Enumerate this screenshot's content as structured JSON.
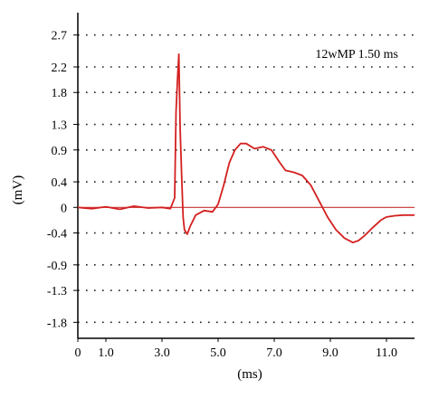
{
  "chart_data": {
    "type": "line",
    "annotation": "12wMP 1.50 ms",
    "xlabel": "(ms)",
    "ylabel": "(mV)",
    "xlim": [
      0,
      12
    ],
    "ylim": [
      -2.05,
      3.05
    ],
    "x_tick_labels": [
      {
        "value": 0,
        "label": "0"
      },
      {
        "value": 1,
        "label": "1.0"
      },
      {
        "value": 3,
        "label": "3.0"
      },
      {
        "value": 5,
        "label": "5.0"
      },
      {
        "value": 7,
        "label": "7.0"
      },
      {
        "value": 9,
        "label": "9.0"
      },
      {
        "value": 11,
        "label": "11.0"
      }
    ],
    "y_tick_labels": [
      {
        "value": 2.7,
        "label": "2.7"
      },
      {
        "value": 2.2,
        "label": "2.2"
      },
      {
        "value": 1.8,
        "label": "1.8"
      },
      {
        "value": 1.3,
        "label": "1.3"
      },
      {
        "value": 0.9,
        "label": "0.9"
      },
      {
        "value": 0.4,
        "label": "0.4"
      },
      {
        "value": 0,
        "label": "0"
      },
      {
        "value": -0.4,
        "label": "-0.4"
      },
      {
        "value": -0.9,
        "label": "-0.9"
      },
      {
        "value": -1.3,
        "label": "-1.3"
      },
      {
        "value": -1.8,
        "label": "-1.8"
      }
    ],
    "grid": "dotted-horizontal",
    "colors": {
      "series": "#d42020",
      "baseline": "#c83030",
      "axis": "#000000",
      "grid": "#222222"
    },
    "baseline_value": 0,
    "series": [
      {
        "x": [
          0,
          0.5,
          1.0,
          1.5,
          2.0,
          2.5,
          3.0,
          3.3,
          3.45,
          3.5,
          3.55,
          3.6,
          3.65,
          3.7,
          3.75,
          3.8,
          3.9,
          4.0,
          4.2,
          4.5,
          4.8,
          5.0,
          5.2,
          5.4,
          5.6,
          5.8,
          6.0,
          6.3,
          6.6,
          6.9,
          7.2,
          7.4,
          7.7,
          8.0,
          8.3,
          8.6,
          8.9,
          9.2,
          9.5,
          9.8,
          10.0,
          10.2,
          10.5,
          10.8,
          11.0,
          11.3,
          11.6,
          12.0
        ],
        "y": [
          0,
          -0.02,
          0.01,
          -0.03,
          0.02,
          -0.01,
          0,
          -0.02,
          0.15,
          1.5,
          2.0,
          2.4,
          1.2,
          0.5,
          -0.15,
          -0.35,
          -0.42,
          -0.3,
          -0.12,
          -0.05,
          -0.07,
          0.05,
          0.35,
          0.7,
          0.9,
          1.0,
          1.0,
          0.92,
          0.95,
          0.9,
          0.7,
          0.58,
          0.55,
          0.5,
          0.35,
          0.1,
          -0.15,
          -0.35,
          -0.48,
          -0.55,
          -0.52,
          -0.45,
          -0.32,
          -0.2,
          -0.15,
          -0.13,
          -0.12,
          -0.12
        ]
      }
    ]
  }
}
